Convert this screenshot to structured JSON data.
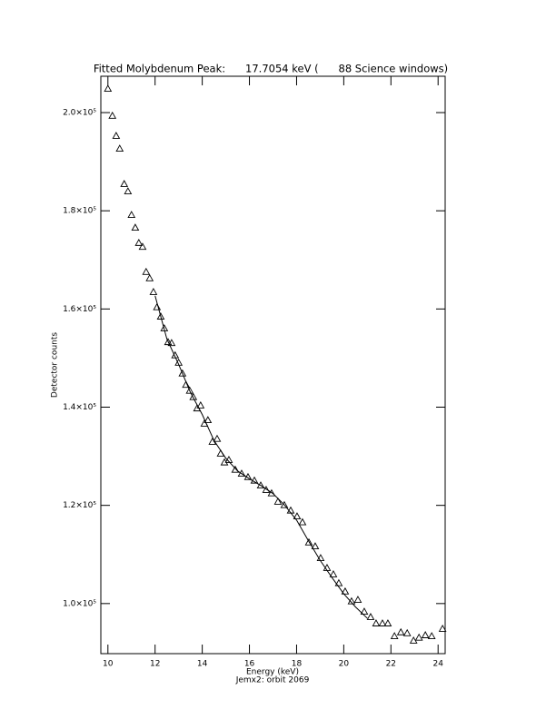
{
  "chart_data": {
    "type": "scatter",
    "title": "Fitted Molybdenum Peak:      17.7054 keV (      88 Science windows)",
    "x_label": "Energy (keV)",
    "subtitle": "Jemx2: orbit 2069",
    "y_label": "Detector counts",
    "xlim": [
      9.7,
      24.3
    ],
    "ylim": [
      89800,
      207400
    ],
    "xticks": [
      10,
      12,
      14,
      16,
      18,
      20,
      22,
      24
    ],
    "yticks": [
      {
        "value": 100000,
        "label": "1.0×10⁵"
      },
      {
        "value": 120000,
        "label": "1.2×10⁵"
      },
      {
        "value": 140000,
        "label": "1.4×10⁵"
      },
      {
        "value": 160000,
        "label": "1.6×10⁵"
      },
      {
        "value": 180000,
        "label": "1.8×10⁵"
      },
      {
        "value": 200000,
        "label": "2.0×10⁵"
      }
    ],
    "series": [
      {
        "marker": "triangle",
        "color": "#000000",
        "x": [
          10.0,
          10.19,
          10.35,
          10.5,
          10.69,
          10.85,
          11.0,
          11.16,
          11.31,
          11.47,
          11.62,
          11.77,
          11.93,
          12.08,
          12.24,
          12.39,
          12.55,
          12.7,
          12.85,
          13.0,
          13.16,
          13.31,
          13.47,
          13.62,
          13.78,
          13.93,
          14.09,
          14.24,
          14.43,
          14.63,
          14.78,
          14.94,
          15.13,
          15.4,
          15.67,
          15.94,
          16.21,
          16.48,
          16.71,
          16.94,
          17.21,
          17.48,
          17.75,
          18.02,
          18.25,
          18.52,
          18.79,
          19.02,
          19.29,
          19.56,
          19.79,
          20.06,
          20.33,
          20.6,
          20.87,
          21.14,
          21.37,
          21.64,
          21.87,
          22.15,
          22.42,
          22.69,
          22.96,
          23.19,
          23.46,
          23.73,
          24.19
        ],
        "values": [
          204800,
          199300,
          195200,
          192600,
          185400,
          183900,
          179100,
          176500,
          173400,
          172600,
          167500,
          166200,
          163400,
          160300,
          158400,
          156000,
          153200,
          153000,
          150500,
          149000,
          146800,
          144500,
          143300,
          142000,
          139700,
          140300,
          136600,
          137300,
          132900,
          133500,
          130500,
          128700,
          129200,
          127200,
          126400,
          125700,
          125000,
          124000,
          123100,
          122400,
          120700,
          120000,
          118900,
          117700,
          116500,
          112400,
          111600,
          109200,
          107200,
          105900,
          104100,
          102400,
          100400,
          100700,
          98300,
          97200,
          95900,
          95900,
          95900,
          93300,
          94100,
          93900,
          92400,
          93000,
          93500,
          93300,
          94800
        ]
      },
      {
        "marker": "line",
        "color": "#000000",
        "x": [
          12.0,
          12.5,
          13.0,
          13.5,
          14.0,
          14.5,
          15.0,
          15.5,
          16.0,
          16.5,
          17.0,
          17.5,
          18.0,
          18.5,
          19.0,
          19.5,
          20.0,
          20.5,
          21.0
        ],
        "values": [
          162700,
          153900,
          148700,
          143000,
          138500,
          133200,
          129600,
          127000,
          125400,
          124000,
          122400,
          120000,
          117000,
          112800,
          108800,
          105300,
          102000,
          99300,
          97000
        ]
      }
    ]
  }
}
